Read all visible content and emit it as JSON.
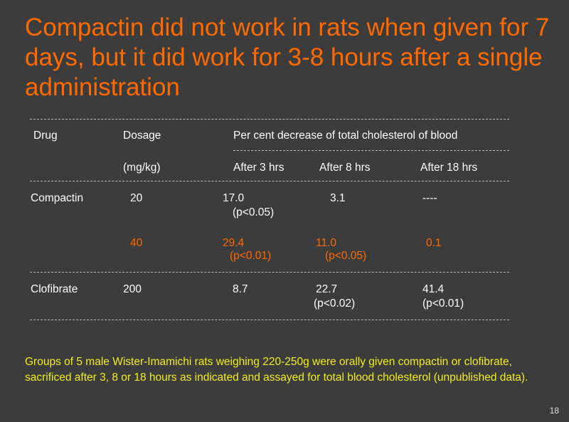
{
  "title": "Compactin did not work in rats when given for 7 days, but it did work for 3-8 hours after a single administration",
  "table": {
    "headers": {
      "drug": "Drug",
      "dosage": "Dosage",
      "group": "Per cent decrease of total cholesterol of blood",
      "unit": "(mg/kg)",
      "h3": "After 3 hrs",
      "h8": "After 8 hrs",
      "h18": "After 18 hrs"
    },
    "rows": [
      {
        "drug": "Compactin",
        "dose": "20",
        "h3": "17.0",
        "h3_p": "(p<0.05)",
        "h8": "3.1",
        "h8_p": "",
        "h18": "----",
        "h18_p": ""
      },
      {
        "drug": "",
        "dose": "40",
        "h3": "29.4",
        "h3_p": "(p<0.01)",
        "h8": "11.0",
        "h8_p": "(p<0.05)",
        "h18": "0.1",
        "h18_p": ""
      },
      {
        "drug": "Clofibrate",
        "dose": "200",
        "h3": "8.7",
        "h3_p": "",
        "h8": "22.7",
        "h8_p": "(p<0.02)",
        "h18": "41.4",
        "h18_p": "(p<0.01)"
      }
    ]
  },
  "note": "Groups of 5 male Wister-Imamichi rats weighing 220-250g were orally given compactin or clofibrate, sacrificed after 3, 8 or 18 hours as indicated and assayed for total blood cholesterol (unpublished data).",
  "page_number": "18",
  "colors": {
    "background": "#3c3c3c",
    "title": "#ff6a00",
    "highlight_row": "#ff6a00",
    "note": "#f2ee1c",
    "text": "#ffffff"
  }
}
